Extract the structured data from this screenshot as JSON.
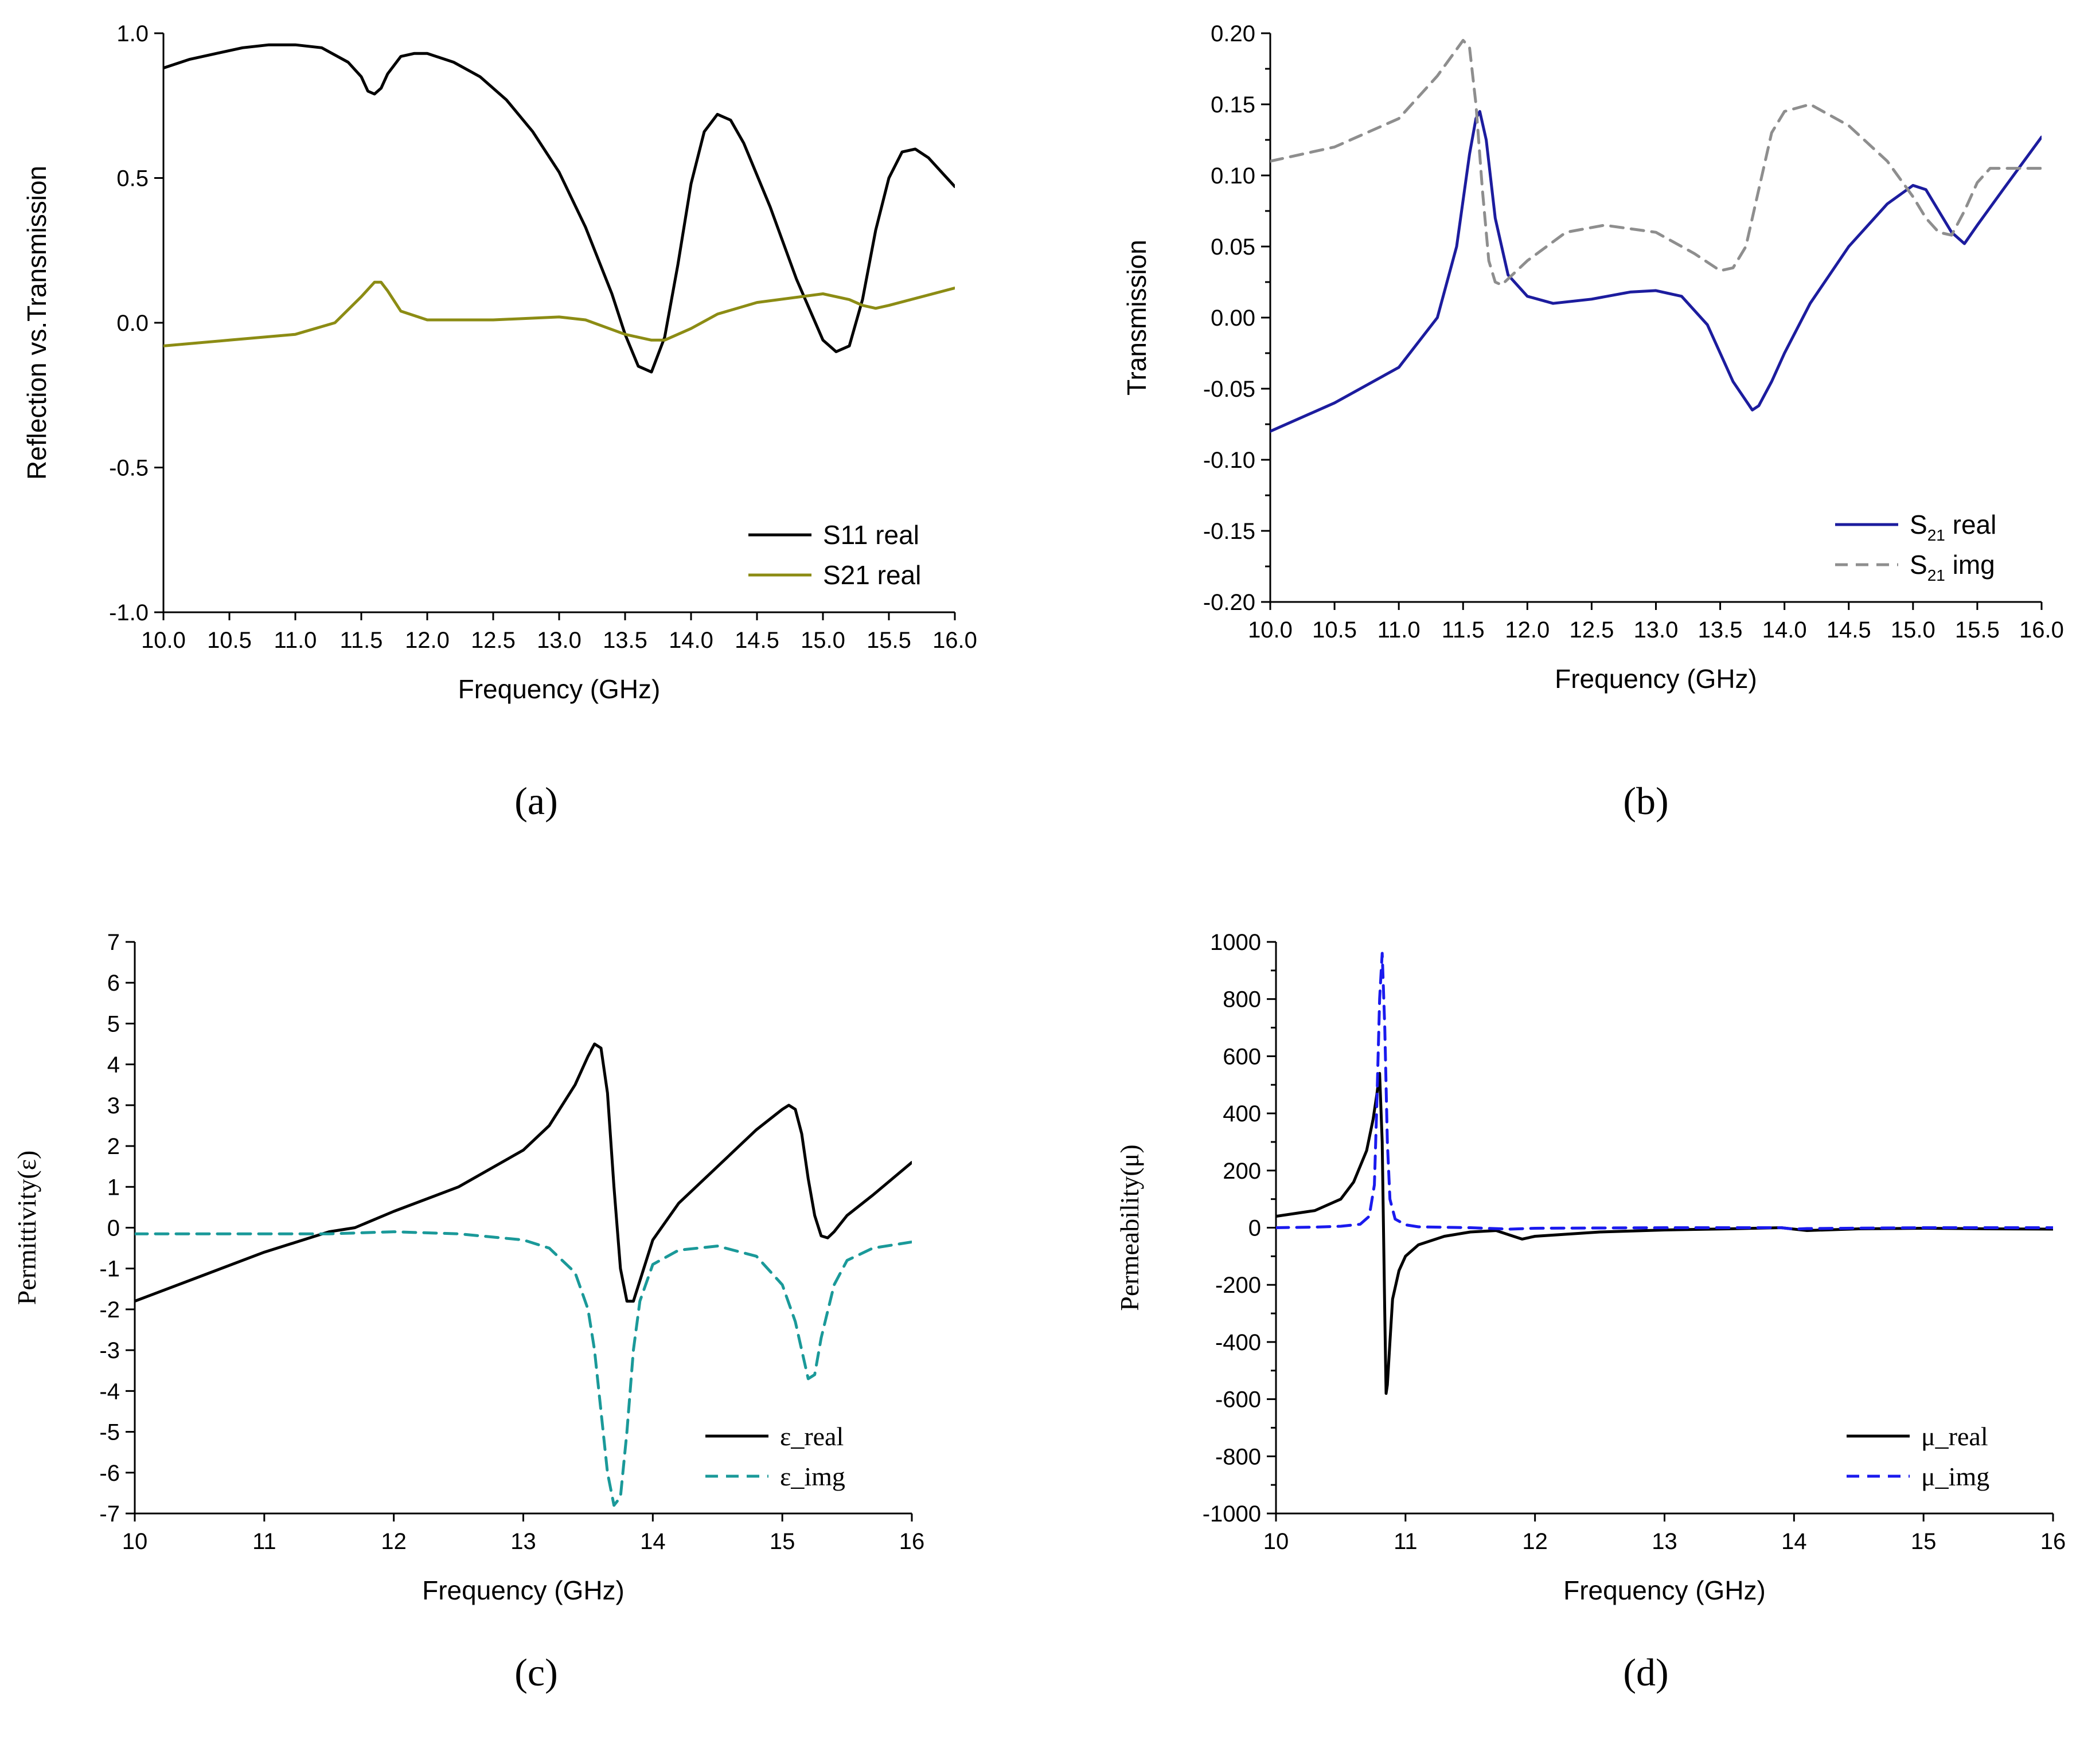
{
  "chart_data": [
    {
      "id": "a",
      "type": "line",
      "panel_label": "(a)",
      "xlabel": "Frequency (GHz)",
      "ylabel": "Reflection vs.Transmission",
      "xlim": [
        10.0,
        16.0
      ],
      "ylim": [
        -1.0,
        1.0
      ],
      "xticks": [
        "10.0",
        "10.5",
        "11.0",
        "11.5",
        "12.0",
        "12.5",
        "13.0",
        "13.5",
        "14.0",
        "14.5",
        "15.0",
        "15.5",
        "16.0"
      ],
      "yticks": [
        "-1.0",
        "-0.5",
        "0.0",
        "0.5",
        "1.0"
      ],
      "legend_position": "lower-right",
      "series": [
        {
          "name": "S11 real",
          "name_main": "S11 real",
          "name_sub": "",
          "name_tail": "",
          "color": "#000000",
          "dash": "solid",
          "x": [
            10.0,
            10.2,
            10.4,
            10.6,
            10.8,
            11.0,
            11.2,
            11.4,
            11.5,
            11.55,
            11.6,
            11.65,
            11.7,
            11.8,
            11.9,
            12.0,
            12.2,
            12.4,
            12.6,
            12.8,
            13.0,
            13.2,
            13.4,
            13.5,
            13.6,
            13.7,
            13.8,
            13.9,
            14.0,
            14.1,
            14.2,
            14.3,
            14.4,
            14.6,
            14.8,
            15.0,
            15.1,
            15.2,
            15.3,
            15.4,
            15.5,
            15.6,
            15.7,
            15.8,
            15.9,
            16.0
          ],
          "values": [
            0.88,
            0.91,
            0.93,
            0.95,
            0.96,
            0.96,
            0.95,
            0.9,
            0.85,
            0.8,
            0.79,
            0.81,
            0.86,
            0.92,
            0.93,
            0.93,
            0.9,
            0.85,
            0.77,
            0.66,
            0.52,
            0.33,
            0.1,
            -0.04,
            -0.15,
            -0.17,
            -0.05,
            0.2,
            0.48,
            0.66,
            0.72,
            0.7,
            0.62,
            0.4,
            0.15,
            -0.06,
            -0.1,
            -0.08,
            0.08,
            0.32,
            0.5,
            0.59,
            0.6,
            0.57,
            0.52,
            0.47
          ]
        },
        {
          "name": "S21 real",
          "name_main": "S21 real",
          "name_sub": "",
          "name_tail": "",
          "color": "#8c8c14",
          "dash": "solid",
          "x": [
            10.0,
            10.5,
            11.0,
            11.3,
            11.5,
            11.6,
            11.65,
            11.7,
            11.8,
            12.0,
            12.5,
            13.0,
            13.2,
            13.5,
            13.7,
            13.8,
            14.0,
            14.2,
            14.5,
            15.0,
            15.2,
            15.3,
            15.4,
            15.5,
            16.0
          ],
          "values": [
            -0.08,
            -0.06,
            -0.04,
            0.0,
            0.09,
            0.14,
            0.14,
            0.11,
            0.04,
            0.01,
            0.01,
            0.02,
            0.01,
            -0.04,
            -0.06,
            -0.06,
            -0.02,
            0.03,
            0.07,
            0.1,
            0.08,
            0.06,
            0.05,
            0.06,
            0.12
          ]
        }
      ]
    },
    {
      "id": "b",
      "type": "line",
      "panel_label": "(b)",
      "xlabel": "Frequency (GHz)",
      "ylabel": "Transmission",
      "xlim": [
        10.0,
        16.0
      ],
      "ylim": [
        -0.2,
        0.2
      ],
      "xticks": [
        "10.0",
        "10.5",
        "11.0",
        "11.5",
        "12.0",
        "12.5",
        "13.0",
        "13.5",
        "14.0",
        "14.5",
        "15.0",
        "15.5",
        "16.0"
      ],
      "yticks": [
        "-0.20",
        "-0.15",
        "-0.10",
        "-0.05",
        "0.00",
        "0.05",
        "0.10",
        "0.15",
        "0.20"
      ],
      "legend_position": "lower-right",
      "series": [
        {
          "name": "S21 real",
          "name_main": "S",
          "name_sub": "21",
          "name_tail": " real",
          "color": "#1c1c9e",
          "dash": "solid",
          "x": [
            10.0,
            10.5,
            11.0,
            11.3,
            11.45,
            11.55,
            11.6,
            11.63,
            11.68,
            11.75,
            11.85,
            12.0,
            12.2,
            12.5,
            12.8,
            13.0,
            13.2,
            13.4,
            13.6,
            13.75,
            13.8,
            13.9,
            14.0,
            14.2,
            14.5,
            14.8,
            15.0,
            15.1,
            15.2,
            15.3,
            15.4,
            15.5,
            15.7,
            16.0
          ],
          "values": [
            -0.08,
            -0.06,
            -0.035,
            0.0,
            0.05,
            0.115,
            0.14,
            0.145,
            0.125,
            0.07,
            0.03,
            0.015,
            0.01,
            0.013,
            0.018,
            0.019,
            0.015,
            -0.005,
            -0.045,
            -0.065,
            -0.062,
            -0.045,
            -0.025,
            0.01,
            0.05,
            0.08,
            0.093,
            0.09,
            0.075,
            0.06,
            0.052,
            0.065,
            0.09,
            0.127
          ]
        },
        {
          "name": "S21 img",
          "name_main": "S",
          "name_sub": "21",
          "name_tail": " img",
          "color": "#8e8e8e",
          "dash": "dashed",
          "x": [
            10.0,
            10.5,
            11.0,
            11.3,
            11.5,
            11.55,
            11.6,
            11.65,
            11.7,
            11.75,
            11.8,
            12.0,
            12.3,
            12.6,
            13.0,
            13.3,
            13.5,
            13.6,
            13.7,
            13.8,
            13.9,
            14.0,
            14.2,
            14.5,
            14.8,
            15.0,
            15.1,
            15.2,
            15.3,
            15.4,
            15.5,
            15.6,
            16.0
          ],
          "values": [
            0.11,
            0.12,
            0.14,
            0.17,
            0.195,
            0.19,
            0.15,
            0.09,
            0.04,
            0.025,
            0.023,
            0.04,
            0.06,
            0.065,
            0.06,
            0.045,
            0.033,
            0.035,
            0.05,
            0.09,
            0.13,
            0.145,
            0.15,
            0.135,
            0.11,
            0.085,
            0.07,
            0.06,
            0.058,
            0.075,
            0.095,
            0.105,
            0.105
          ]
        }
      ]
    },
    {
      "id": "c",
      "type": "line",
      "panel_label": "(c)",
      "xlabel": "Frequency (GHz)",
      "ylabel": "Permittivity(ε)",
      "xlim": [
        10,
        16
      ],
      "ylim": [
        -7,
        7
      ],
      "xticks": [
        "10",
        "11",
        "12",
        "13",
        "14",
        "15",
        "16"
      ],
      "yticks": [
        "-7",
        "-6",
        "-5",
        "-4",
        "-3",
        "-2",
        "-1",
        "0",
        "1",
        "2",
        "3",
        "4",
        "5",
        "6",
        "7"
      ],
      "legend_position": "lower-right",
      "series": [
        {
          "name": "ε_real",
          "name_main": "ε_real",
          "name_sub": "",
          "name_tail": "",
          "color": "#000000",
          "dash": "solid",
          "x": [
            10.0,
            10.5,
            11.0,
            11.5,
            11.7,
            12.0,
            12.5,
            13.0,
            13.2,
            13.4,
            13.5,
            13.55,
            13.6,
            13.65,
            13.7,
            13.75,
            13.8,
            13.85,
            13.9,
            14.0,
            14.2,
            14.5,
            14.8,
            15.0,
            15.05,
            15.1,
            15.15,
            15.2,
            15.25,
            15.3,
            15.35,
            15.4,
            15.5,
            15.7,
            16.0
          ],
          "values": [
            -1.8,
            -1.2,
            -0.6,
            -0.1,
            0.0,
            0.4,
            1.0,
            1.9,
            2.5,
            3.5,
            4.2,
            4.5,
            4.4,
            3.3,
            1.0,
            -1.0,
            -1.8,
            -1.8,
            -1.3,
            -0.3,
            0.6,
            1.5,
            2.4,
            2.9,
            3.0,
            2.9,
            2.3,
            1.2,
            0.3,
            -0.2,
            -0.25,
            -0.1,
            0.3,
            0.8,
            1.6
          ]
        },
        {
          "name": "ε_img",
          "name_main": "ε_img",
          "name_sub": "",
          "name_tail": "",
          "color": "#1a9999",
          "dash": "dashed",
          "x": [
            10.0,
            10.5,
            11.0,
            11.5,
            12.0,
            12.5,
            13.0,
            13.2,
            13.4,
            13.5,
            13.55,
            13.6,
            13.65,
            13.7,
            13.75,
            13.8,
            13.85,
            13.9,
            14.0,
            14.2,
            14.5,
            14.8,
            15.0,
            15.1,
            15.15,
            15.2,
            15.25,
            15.3,
            15.4,
            15.5,
            15.7,
            16.0
          ],
          "values": [
            -0.15,
            -0.15,
            -0.15,
            -0.15,
            -0.1,
            -0.15,
            -0.3,
            -0.5,
            -1.1,
            -2.0,
            -3.0,
            -4.5,
            -6.0,
            -6.8,
            -6.6,
            -5.0,
            -3.0,
            -1.8,
            -0.9,
            -0.55,
            -0.45,
            -0.7,
            -1.4,
            -2.3,
            -3.0,
            -3.7,
            -3.6,
            -2.7,
            -1.4,
            -0.8,
            -0.5,
            -0.35
          ]
        }
      ]
    },
    {
      "id": "d",
      "type": "line",
      "panel_label": "(d)",
      "xlabel": "Frequency (GHz)",
      "ylabel": "Permeability(μ)",
      "xlim": [
        10,
        16
      ],
      "ylim": [
        -1000,
        1000
      ],
      "xticks": [
        "10",
        "11",
        "12",
        "13",
        "14",
        "15",
        "16"
      ],
      "yticks": [
        "-1000",
        "-800",
        "-600",
        "-400",
        "-200",
        "0",
        "200",
        "400",
        "600",
        "800",
        "1000"
      ],
      "legend_position": "lower-right",
      "series": [
        {
          "name": "μ_real",
          "name_main": "μ_real",
          "name_sub": "",
          "name_tail": "",
          "color": "#000000",
          "dash": "solid",
          "x": [
            10.0,
            10.3,
            10.5,
            10.6,
            10.7,
            10.75,
            10.78,
            10.8,
            10.82,
            10.84,
            10.85,
            10.86,
            10.88,
            10.9,
            10.95,
            11.0,
            11.1,
            11.3,
            11.5,
            11.7,
            11.8,
            11.9,
            12.0,
            12.5,
            13.0,
            13.5,
            13.9,
            14.0,
            14.1,
            14.5,
            15.0,
            15.5,
            16.0
          ],
          "values": [
            40,
            60,
            100,
            160,
            270,
            380,
            470,
            540,
            300,
            -300,
            -580,
            -550,
            -400,
            -250,
            -150,
            -100,
            -60,
            -30,
            -15,
            -10,
            -25,
            -40,
            -30,
            -15,
            -8,
            -4,
            0,
            -5,
            -10,
            -4,
            -2,
            -4,
            -5
          ]
        },
        {
          "name": "μ_img",
          "name_main": "μ_img",
          "name_sub": "",
          "name_tail": "",
          "color": "#1a1aee",
          "dash": "dashed",
          "x": [
            10.0,
            10.3,
            10.5,
            10.65,
            10.72,
            10.76,
            10.78,
            10.8,
            10.82,
            10.84,
            10.86,
            10.88,
            10.92,
            11.0,
            11.1,
            11.5,
            11.8,
            12.0,
            13.0,
            13.9,
            14.0,
            14.1,
            15.0,
            16.0
          ],
          "values": [
            0,
            2,
            5,
            12,
            40,
            150,
            450,
            800,
            960,
            700,
            300,
            100,
            30,
            10,
            3,
            0,
            -5,
            -2,
            0,
            0,
            -5,
            -3,
            0,
            0
          ]
        }
      ]
    }
  ]
}
